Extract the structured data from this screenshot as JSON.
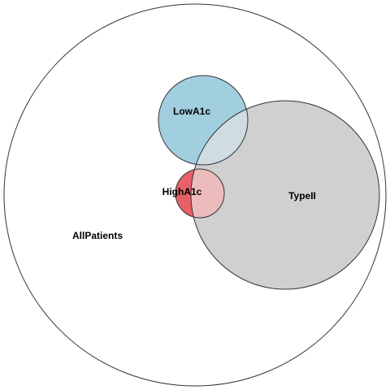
{
  "sets": [
    {
      "id": "allpatients",
      "label": "AllPatients",
      "fill": "#ffffff",
      "stroke": "#333333"
    },
    {
      "id": "typeii",
      "label": "TypeII",
      "fill": "#d0d0d0",
      "stroke": "#333333"
    },
    {
      "id": "lowa1c",
      "label": "LowA1c",
      "fill": "#a2cfe0",
      "stroke": "#333333"
    },
    {
      "id": "higha1c",
      "label": "HighA1c",
      "fill": "#e86068",
      "stroke": "#333333"
    }
  ],
  "overlap_colors": {
    "lowa1c_typeii": "#cfdde3",
    "higha1c_typeii": "#ecbcbc"
  }
}
